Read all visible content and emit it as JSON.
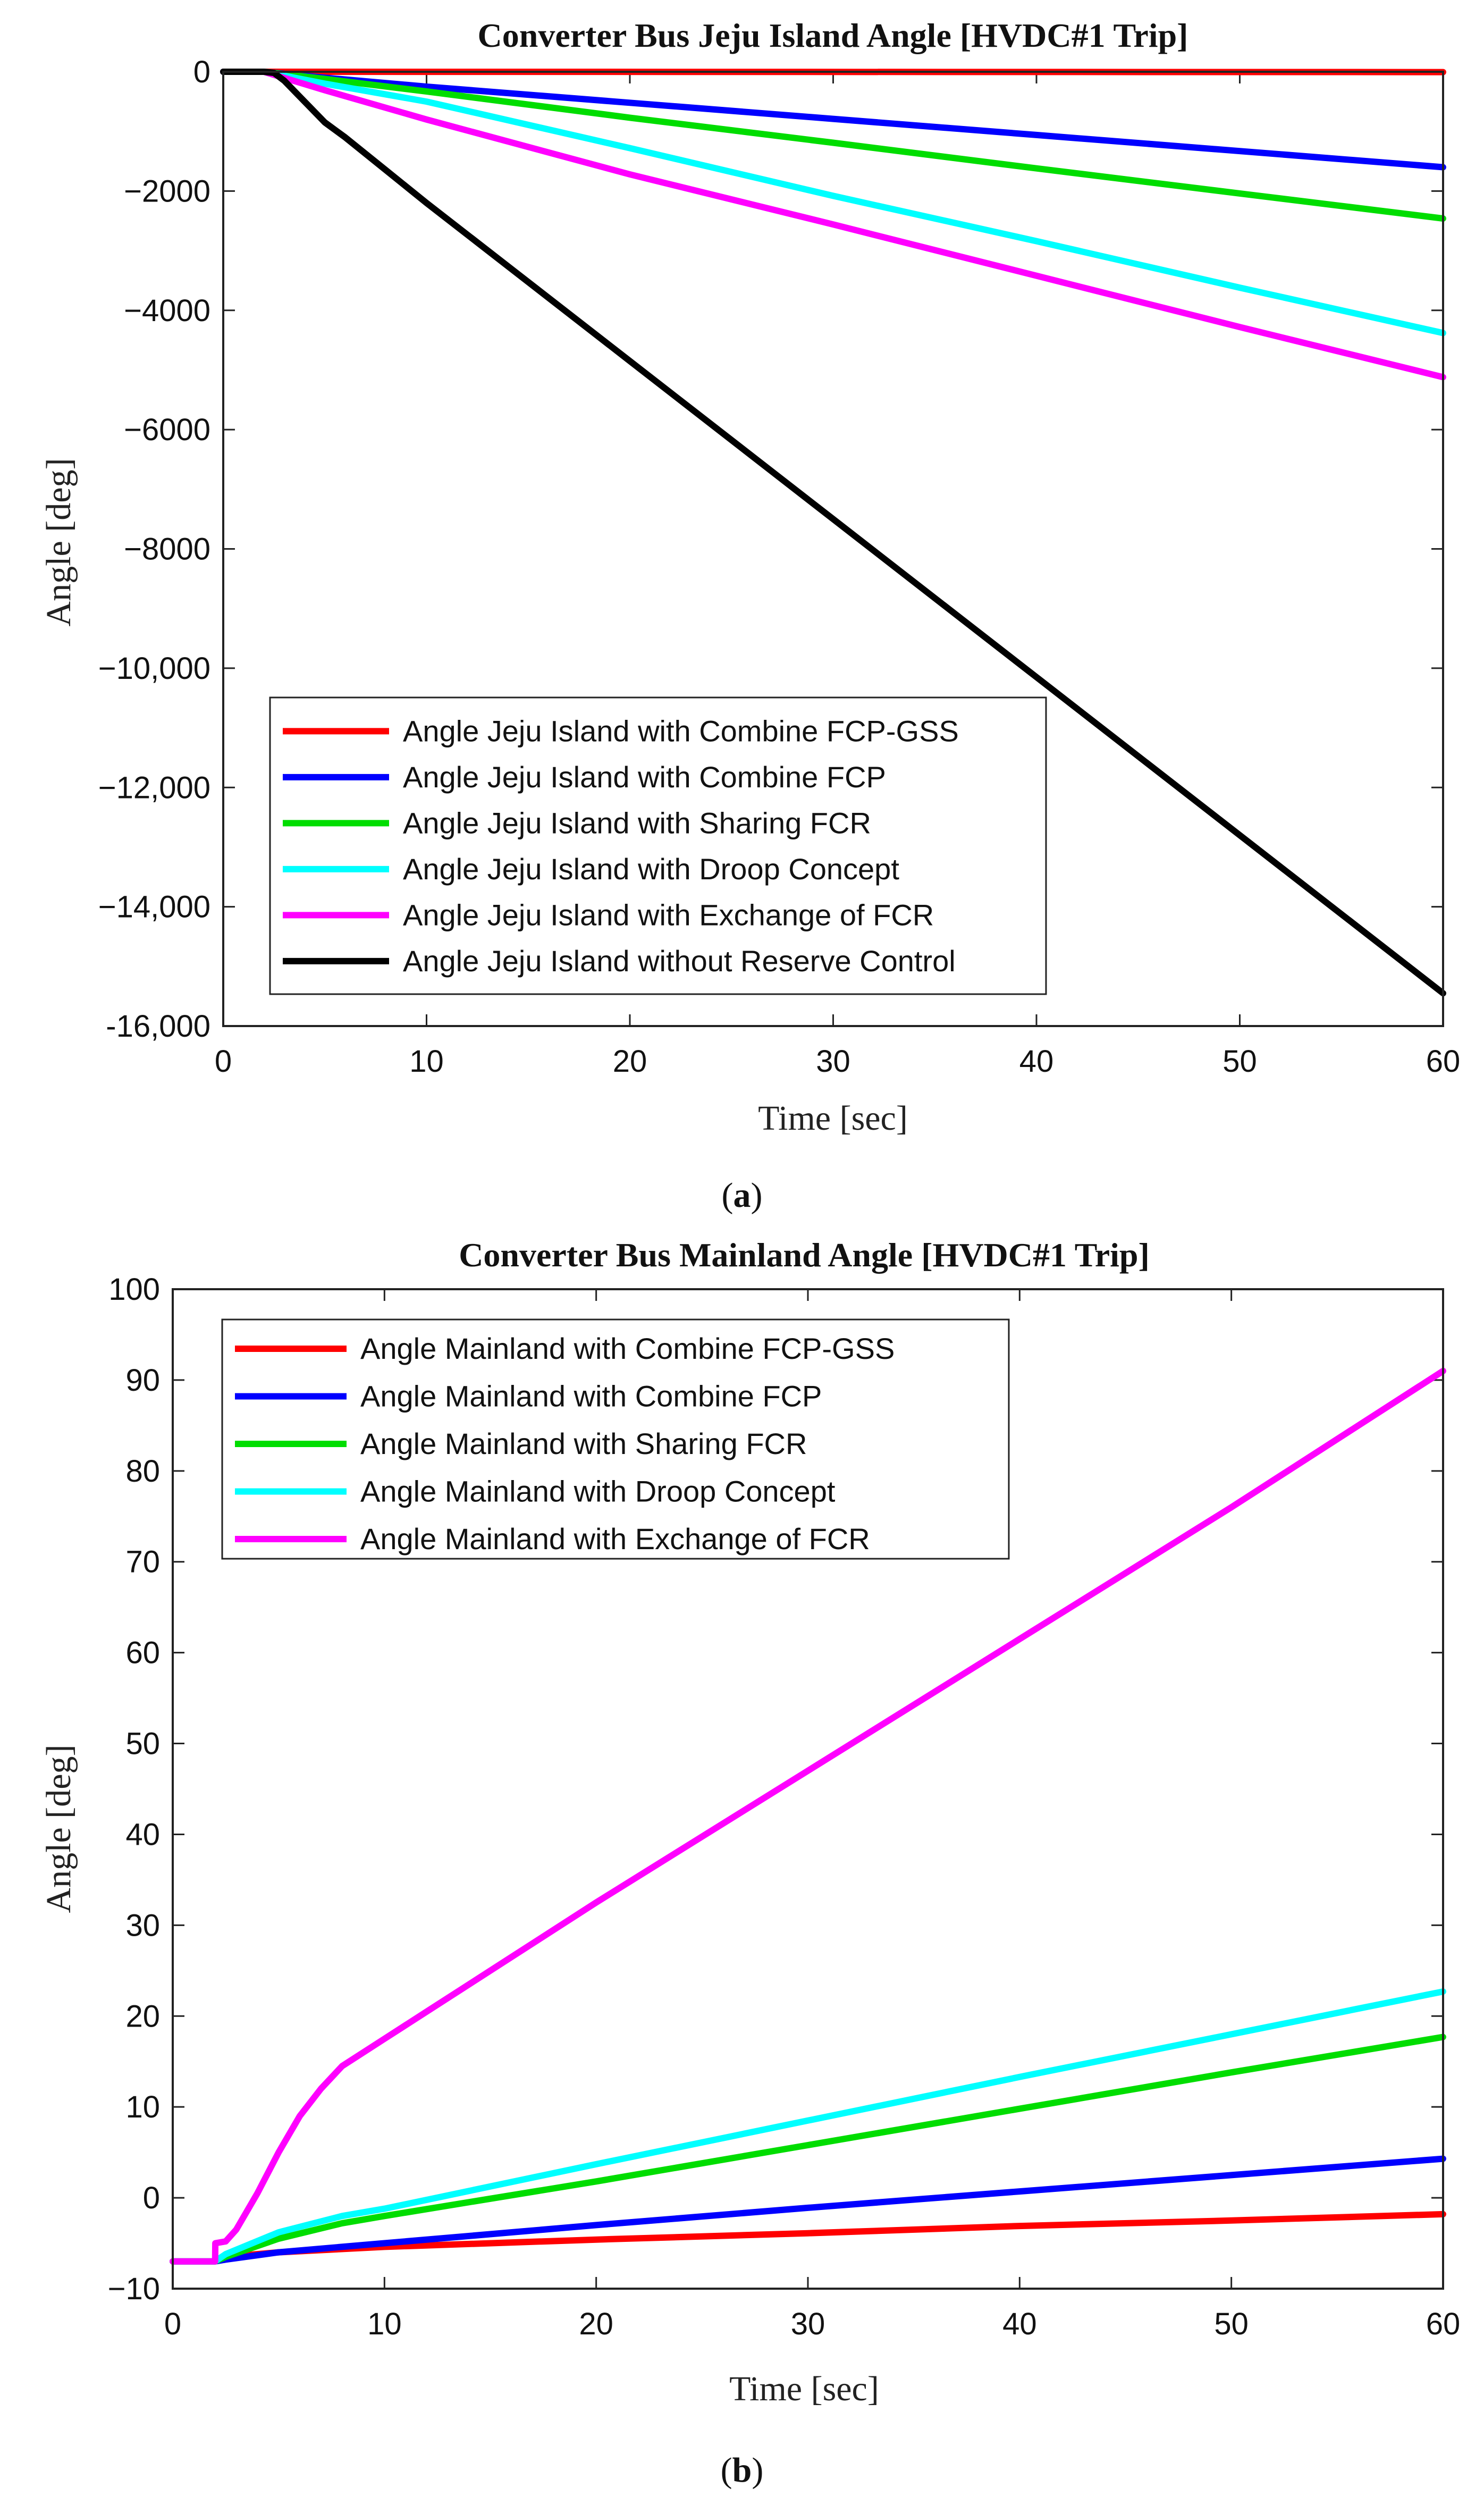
{
  "chart_data": [
    {
      "type": "line",
      "title": "Converter Bus Jeju Island Angle [HVDC#1 Trip]",
      "xlabel": "Time [sec]",
      "ylabel": "Angle [deg]",
      "xlim": [
        0,
        60
      ],
      "ylim": [
        -16000,
        0
      ],
      "xticks": [
        0,
        10,
        20,
        30,
        40,
        50,
        60
      ],
      "xtick_labels": [
        "0",
        "10",
        "20",
        "30",
        "40",
        "50",
        "60"
      ],
      "yticks": [
        0,
        -2000,
        -4000,
        -6000,
        -8000,
        -10000,
        -12000,
        -14000,
        -16000
      ],
      "ytick_labels": [
        "0",
        "−2000",
        "−4000",
        "−6000",
        "−8000",
        "−10,000",
        "−12,000",
        "−14,000",
        "-16,000"
      ],
      "legend_position": "bottom-left",
      "caption_open": "(",
      "caption_letter": "a",
      "caption_close": ")",
      "series": [
        {
          "name": "Angle Jeju Island with Combine FCP-GSS",
          "color": "#ff0000",
          "x": [
            0,
            2,
            60
          ],
          "y": [
            0,
            0,
            -5
          ]
        },
        {
          "name": "Angle Jeju Island with Combine FCP",
          "color": "#0000ff",
          "x": [
            0,
            2,
            5,
            10,
            20,
            30,
            40,
            50,
            60
          ],
          "y": [
            0,
            0,
            -100,
            -250,
            -520,
            -790,
            -1060,
            -1330,
            -1600
          ]
        },
        {
          "name": "Angle Jeju Island with Sharing FCR",
          "color": "#00dd00",
          "x": [
            0,
            2,
            5,
            10,
            20,
            30,
            40,
            50,
            60
          ],
          "y": [
            0,
            0,
            -120,
            -330,
            -770,
            -1190,
            -1620,
            -2040,
            -2460
          ]
        },
        {
          "name": "Angle Jeju Island with Droop Concept",
          "color": "#00ffff",
          "x": [
            0,
            2,
            5,
            10,
            20,
            30,
            40,
            50,
            60
          ],
          "y": [
            0,
            0,
            -200,
            -500,
            -1280,
            -2080,
            -2840,
            -3620,
            -4380
          ]
        },
        {
          "name": "Angle Jeju Island with Exchange of FCR",
          "color": "#ff00ff",
          "x": [
            0,
            2,
            5,
            10,
            20,
            30,
            40,
            50,
            60
          ],
          "y": [
            0,
            0,
            -310,
            -800,
            -1720,
            -2560,
            -3420,
            -4280,
            -5120
          ]
        },
        {
          "name": "Angle Jeju Island without Reserve Control",
          "color": "#000000",
          "x": [
            0,
            2,
            2.5,
            3,
            4,
            5,
            6,
            8,
            10,
            20,
            30,
            40,
            50,
            60
          ],
          "y": [
            0,
            0,
            -20,
            -150,
            -500,
            -850,
            -1100,
            -1650,
            -2200,
            -4850,
            -7500,
            -10150,
            -12800,
            -15450
          ]
        }
      ]
    },
    {
      "type": "line",
      "title": "Converter Bus Mainland Angle [HVDC#1 Trip]",
      "xlabel": "Time [sec]",
      "ylabel": "Angle [deg]",
      "xlim": [
        0,
        60
      ],
      "ylim": [
        -10,
        100
      ],
      "xticks": [
        0,
        10,
        20,
        30,
        40,
        50,
        60
      ],
      "xtick_labels": [
        "0",
        "10",
        "20",
        "30",
        "40",
        "50",
        "60"
      ],
      "yticks": [
        100,
        90,
        80,
        70,
        60,
        50,
        40,
        30,
        20,
        10,
        0,
        -10
      ],
      "ytick_labels": [
        "100",
        "90",
        "80",
        "70",
        "60",
        "50",
        "40",
        "30",
        "20",
        "10",
        "0",
        "−10"
      ],
      "legend_position": "top-left",
      "caption_open": "(",
      "caption_letter": "b",
      "caption_close": ")",
      "series": [
        {
          "name": "Angle Mainland with Combine FCP-GSS",
          "color": "#ff0000",
          "x": [
            0,
            2,
            2.5,
            5,
            10,
            20,
            30,
            40,
            50,
            60
          ],
          "y": [
            -7,
            -7,
            -6.5,
            -6,
            -5.4,
            -4.6,
            -3.9,
            -3.1,
            -2.5,
            -1.8
          ]
        },
        {
          "name": "Angle Mainland with Combine FCP",
          "color": "#0000ff",
          "x": [
            0,
            2,
            2.5,
            5,
            10,
            20,
            30,
            40,
            50,
            60
          ],
          "y": [
            -7,
            -7,
            -6.8,
            -6,
            -5,
            -3,
            -1.1,
            0.7,
            2.5,
            4.3
          ]
        },
        {
          "name": "Angle Mainland with Sharing FCR",
          "color": "#00dd00",
          "x": [
            0,
            2,
            2.5,
            5,
            8,
            10,
            20,
            30,
            40,
            50,
            60
          ],
          "y": [
            -7,
            -7,
            -6.5,
            -4.5,
            -2.8,
            -2,
            1.8,
            5.8,
            9.8,
            13.8,
            17.7
          ]
        },
        {
          "name": "Angle Mainland with Droop Concept",
          "color": "#00ffff",
          "x": [
            0,
            2,
            2.5,
            5,
            8,
            10,
            20,
            30,
            40,
            50,
            60
          ],
          "y": [
            -7,
            -7,
            -6.2,
            -3.8,
            -2,
            -1.2,
            3.7,
            8.5,
            13.3,
            18,
            22.7
          ]
        },
        {
          "name": "Angle Mainland with Exchange of FCR",
          "color": "#ff00ff",
          "x": [
            0,
            2,
            2.01,
            2.5,
            3,
            4,
            5,
            6,
            7,
            8,
            10,
            12,
            20,
            30,
            40,
            50,
            60
          ],
          "y": [
            -7,
            -7,
            -5,
            -4.8,
            -3.5,
            0.5,
            5,
            9,
            12,
            14.5,
            17.5,
            20.5,
            32.5,
            47,
            61.5,
            76,
            91
          ]
        }
      ]
    }
  ]
}
